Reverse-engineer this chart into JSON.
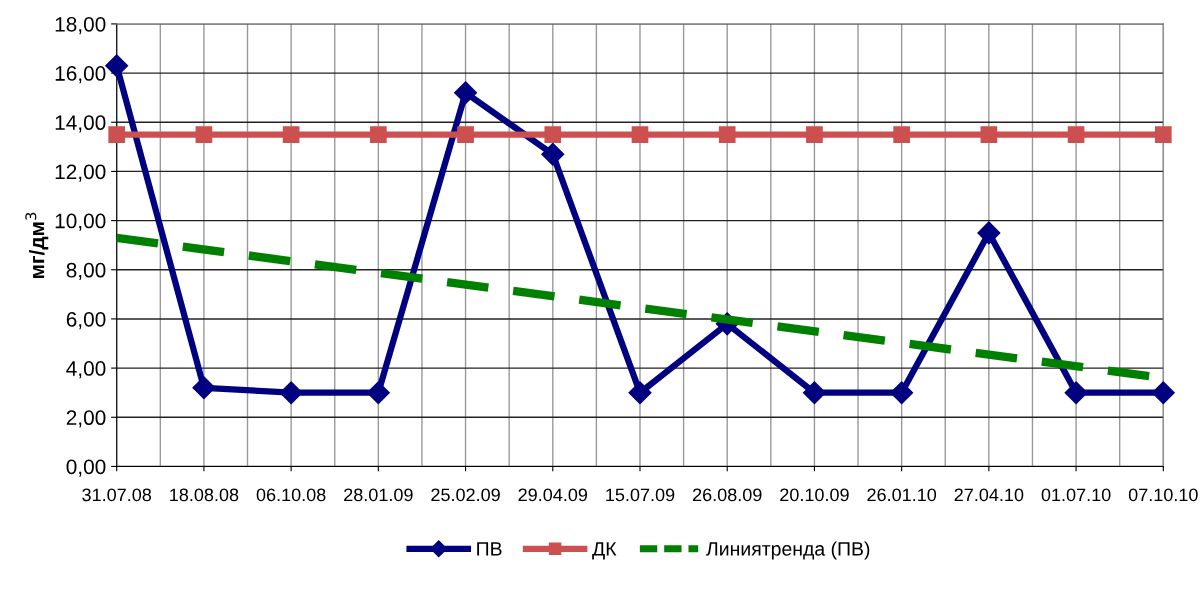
{
  "chart_data": {
    "type": "line",
    "ylabel": "мг/дм$^{3}$",
    "categories": [
      "31.07.08",
      "18.08.08",
      "06.10.08",
      "28.01.09",
      "25.02.09",
      "29.04.09",
      "15.07.09",
      "26.08.09",
      "20.10.09",
      "26.01.10",
      "27.04.10",
      "01.07.10",
      "07.10.10"
    ],
    "series": [
      {
        "name": "ПВ",
        "color": "#000080",
        "marker": "diamond",
        "line_style": "solid",
        "values": [
          16.3,
          3.2,
          3.0,
          3.0,
          15.2,
          12.7,
          3.0,
          5.8,
          3.0,
          3.0,
          9.5,
          3.0,
          3.0
        ]
      },
      {
        "name": "ДК",
        "color": "#cc5050",
        "marker": "square",
        "line_style": "solid",
        "values": [
          13.5,
          13.5,
          13.5,
          13.5,
          13.5,
          13.5,
          13.5,
          13.5,
          13.5,
          13.5,
          13.5,
          13.5,
          13.5
        ]
      },
      {
        "name": "Линиятренда (ПВ)",
        "color": "#008000",
        "marker": "none",
        "line_style": "dashed",
        "x": [
          "31.07.08",
          "07.10.10"
        ],
        "values": [
          9.3,
          3.6
        ]
      }
    ],
    "ylim": [
      0,
      18
    ],
    "yticks": [
      {
        "value": 0,
        "label": "0,00"
      },
      {
        "value": 2,
        "label": "2,00"
      },
      {
        "value": 4,
        "label": "4,00"
      },
      {
        "value": 6,
        "label": "6,00"
      },
      {
        "value": 8,
        "label": "8,00"
      },
      {
        "value": 10,
        "label": "10,00"
      },
      {
        "value": 12,
        "label": "12,00"
      },
      {
        "value": 14,
        "label": "14,00"
      },
      {
        "value": 16,
        "label": "16,00"
      },
      {
        "value": 18,
        "label": "18,00"
      }
    ],
    "grid": true,
    "legend": "bottom"
  }
}
